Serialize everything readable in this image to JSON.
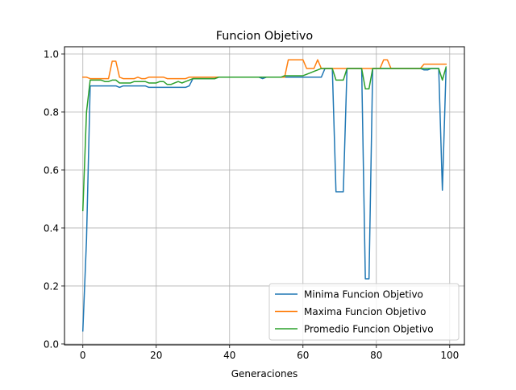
{
  "chart_data": {
    "type": "line",
    "title": "Funcion Objetivo",
    "xlabel": "Generaciones",
    "ylabel": "",
    "xlim": [
      -5,
      104
    ],
    "ylim": [
      -0.003,
      1.025
    ],
    "grid": true,
    "legend_position": "lower-right",
    "x_ticks": [
      0,
      20,
      40,
      60,
      80,
      100
    ],
    "x_tick_labels": [
      "0",
      "20",
      "40",
      "60",
      "80",
      "100"
    ],
    "y_ticks": [
      0.0,
      0.2,
      0.4,
      0.6,
      0.8,
      1.0
    ],
    "y_tick_labels": [
      "0.0",
      "0.2",
      "0.4",
      "0.6",
      "0.8",
      "1.0"
    ],
    "x": [
      0,
      1,
      2,
      3,
      4,
      5,
      6,
      7,
      8,
      9,
      10,
      11,
      12,
      13,
      14,
      15,
      16,
      17,
      18,
      19,
      20,
      21,
      22,
      23,
      24,
      25,
      26,
      27,
      28,
      29,
      30,
      31,
      32,
      33,
      34,
      35,
      36,
      37,
      38,
      39,
      40,
      41,
      42,
      43,
      44,
      45,
      46,
      47,
      48,
      49,
      50,
      51,
      52,
      53,
      54,
      55,
      56,
      57,
      58,
      59,
      60,
      61,
      62,
      63,
      64,
      65,
      66,
      67,
      68,
      69,
      70,
      71,
      72,
      73,
      74,
      75,
      76,
      77,
      78,
      79,
      80,
      81,
      82,
      83,
      84,
      85,
      86,
      87,
      88,
      89,
      90,
      91,
      92,
      93,
      94,
      95,
      96,
      97,
      98,
      99
    ],
    "series": [
      {
        "name": "Minima Funcion Objetivo",
        "color": "#1f77b4",
        "values": [
          0.045,
          0.36,
          0.89,
          0.89,
          0.89,
          0.89,
          0.89,
          0.89,
          0.89,
          0.89,
          0.885,
          0.89,
          0.89,
          0.89,
          0.89,
          0.89,
          0.89,
          0.89,
          0.885,
          0.885,
          0.885,
          0.885,
          0.885,
          0.885,
          0.885,
          0.885,
          0.885,
          0.885,
          0.885,
          0.89,
          0.915,
          0.915,
          0.915,
          0.915,
          0.915,
          0.915,
          0.915,
          0.92,
          0.92,
          0.92,
          0.92,
          0.92,
          0.92,
          0.92,
          0.92,
          0.92,
          0.92,
          0.92,
          0.92,
          0.915,
          0.92,
          0.92,
          0.92,
          0.92,
          0.92,
          0.92,
          0.92,
          0.92,
          0.92,
          0.92,
          0.92,
          0.92,
          0.92,
          0.92,
          0.92,
          0.92,
          0.95,
          0.95,
          0.95,
          0.525,
          0.525,
          0.525,
          0.95,
          0.95,
          0.95,
          0.95,
          0.95,
          0.225,
          0.225,
          0.95,
          0.95,
          0.95,
          0.95,
          0.95,
          0.95,
          0.95,
          0.95,
          0.95,
          0.95,
          0.95,
          0.95,
          0.95,
          0.95,
          0.945,
          0.945,
          0.95,
          0.95,
          0.95,
          0.53,
          0.95
        ]
      },
      {
        "name": "Maxima Funcion Objetivo",
        "color": "#ff7f0e",
        "values": [
          0.92,
          0.92,
          0.915,
          0.915,
          0.915,
          0.915,
          0.915,
          0.915,
          0.975,
          0.975,
          0.92,
          0.915,
          0.915,
          0.915,
          0.915,
          0.92,
          0.915,
          0.915,
          0.92,
          0.92,
          0.92,
          0.92,
          0.92,
          0.915,
          0.915,
          0.915,
          0.915,
          0.915,
          0.915,
          0.92,
          0.92,
          0.92,
          0.92,
          0.92,
          0.92,
          0.92,
          0.92,
          0.92,
          0.92,
          0.92,
          0.92,
          0.92,
          0.92,
          0.92,
          0.92,
          0.92,
          0.92,
          0.92,
          0.92,
          0.92,
          0.92,
          0.92,
          0.92,
          0.92,
          0.92,
          0.92,
          0.98,
          0.98,
          0.98,
          0.98,
          0.98,
          0.95,
          0.95,
          0.95,
          0.98,
          0.95,
          0.95,
          0.95,
          0.95,
          0.95,
          0.95,
          0.95,
          0.95,
          0.95,
          0.95,
          0.95,
          0.95,
          0.95,
          0.95,
          0.95,
          0.95,
          0.95,
          0.98,
          0.98,
          0.95,
          0.95,
          0.95,
          0.95,
          0.95,
          0.95,
          0.95,
          0.95,
          0.95,
          0.965,
          0.965,
          0.965,
          0.965,
          0.965,
          0.965,
          0.965
        ]
      },
      {
        "name": "Promedio Funcion Objetivo",
        "color": "#2ca02c",
        "values": [
          0.46,
          0.8,
          0.91,
          0.91,
          0.91,
          0.91,
          0.905,
          0.905,
          0.91,
          0.91,
          0.9,
          0.9,
          0.9,
          0.9,
          0.905,
          0.905,
          0.905,
          0.905,
          0.9,
          0.9,
          0.9,
          0.905,
          0.905,
          0.895,
          0.895,
          0.9,
          0.905,
          0.9,
          0.905,
          0.91,
          0.915,
          0.915,
          0.915,
          0.915,
          0.915,
          0.915,
          0.915,
          0.92,
          0.92,
          0.92,
          0.92,
          0.92,
          0.92,
          0.92,
          0.92,
          0.92,
          0.92,
          0.92,
          0.92,
          0.92,
          0.92,
          0.92,
          0.92,
          0.92,
          0.92,
          0.925,
          0.925,
          0.925,
          0.925,
          0.925,
          0.925,
          0.93,
          0.935,
          0.94,
          0.945,
          0.95,
          0.95,
          0.95,
          0.95,
          0.91,
          0.91,
          0.91,
          0.95,
          0.95,
          0.95,
          0.95,
          0.95,
          0.88,
          0.88,
          0.95,
          0.95,
          0.95,
          0.95,
          0.95,
          0.95,
          0.95,
          0.95,
          0.95,
          0.95,
          0.95,
          0.95,
          0.95,
          0.95,
          0.95,
          0.95,
          0.95,
          0.95,
          0.95,
          0.91,
          0.955
        ]
      }
    ]
  }
}
